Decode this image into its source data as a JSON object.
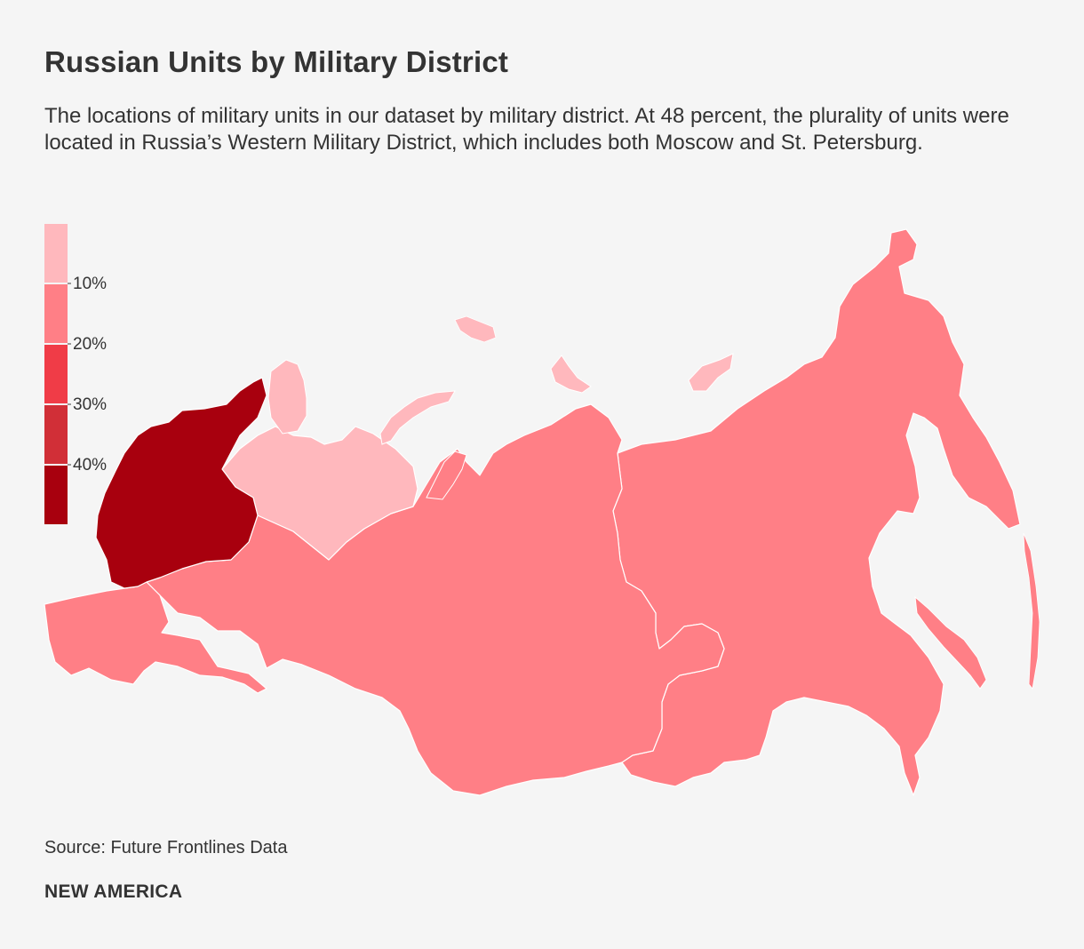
{
  "title": "Russian Units by Military District",
  "subtitle": "The locations of military units in our dataset by military district. At 48 percent, the plurality of units were located in Russia’s Western Military District, which includes both Moscow and St. Petersburg.",
  "legend": {
    "bins": [
      {
        "color": "#ffb8bd"
      },
      {
        "color": "#ff7f86"
      },
      {
        "color": "#f03c47"
      },
      {
        "color": "#d12f37"
      },
      {
        "color": "#a8000e"
      }
    ],
    "labels": [
      "10%",
      "20%",
      "30%",
      "40%"
    ]
  },
  "map": {
    "districts": [
      {
        "id": "western",
        "share_pct": 48,
        "color": "#a8000e"
      },
      {
        "id": "northern-fleet",
        "color": "#ffb8bd"
      },
      {
        "id": "southern",
        "color": "#ff7f86"
      },
      {
        "id": "central",
        "color": "#ff7f86"
      },
      {
        "id": "eastern",
        "color": "#ff7f86"
      }
    ],
    "border_color": "#ffffff"
  },
  "source": "Source: Future Frontlines Data",
  "brand": "NEW AMERICA"
}
